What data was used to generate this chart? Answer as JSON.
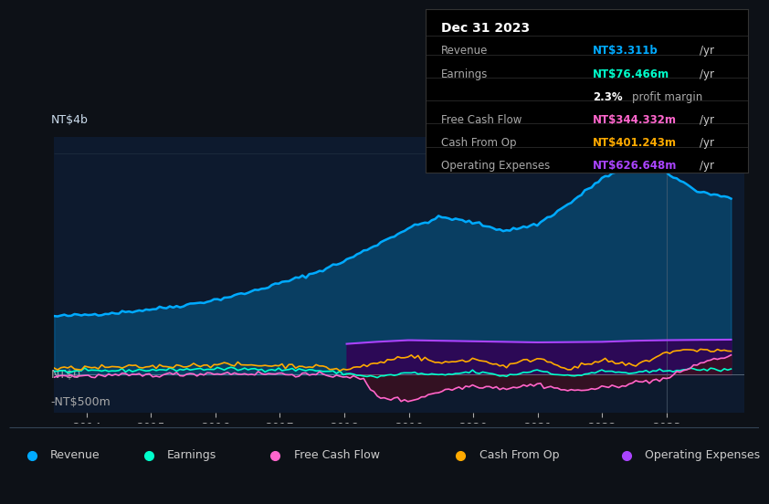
{
  "bg_color": "#0d1117",
  "plot_bg_color": "#0d1a2e",
  "title": "Dec 31 2023",
  "tooltip_bg": "#000000",
  "y_label_top": "NT$4b",
  "y_label_zero": "NT$0",
  "y_label_neg": "-NT$500m",
  "x_ticks": [
    2014,
    2015,
    2016,
    2017,
    2018,
    2019,
    2020,
    2021,
    2022,
    2023
  ],
  "ylim_min": -700000000,
  "ylim_max": 4300000000,
  "revenue_color": "#00aaff",
  "earnings_color": "#00ffcc",
  "fcf_color": "#ff66cc",
  "cashfromop_color": "#ffaa00",
  "opex_color": "#aa44ff",
  "opex_fill_color": "#330055",
  "neg_fill_color": "#3a1020",
  "legend_items": [
    {
      "label": "Revenue",
      "color": "#00aaff"
    },
    {
      "label": "Earnings",
      "color": "#00ffcc"
    },
    {
      "label": "Free Cash Flow",
      "color": "#ff66cc"
    },
    {
      "label": "Cash From Op",
      "color": "#ffaa00"
    },
    {
      "label": "Operating Expenses",
      "color": "#aa44ff"
    }
  ],
  "tooltip_rows": [
    {
      "label": "Revenue",
      "value": "NT$3.311b",
      "unit": "/yr",
      "color": "#00aaff",
      "type": "normal"
    },
    {
      "label": "Earnings",
      "value": "NT$76.466m",
      "unit": "/yr",
      "color": "#00ffcc",
      "type": "normal"
    },
    {
      "label": "",
      "value": "2.3%",
      "unit": "profit margin",
      "color": "white",
      "type": "margin"
    },
    {
      "label": "Free Cash Flow",
      "value": "NT$344.332m",
      "unit": "/yr",
      "color": "#ff66cc",
      "type": "normal"
    },
    {
      "label": "Cash From Op",
      "value": "NT$401.243m",
      "unit": "/yr",
      "color": "#ffaa00",
      "type": "normal"
    },
    {
      "label": "Operating Expenses",
      "value": "NT$626.648m",
      "unit": "/yr",
      "color": "#aa44ff",
      "type": "normal"
    }
  ]
}
